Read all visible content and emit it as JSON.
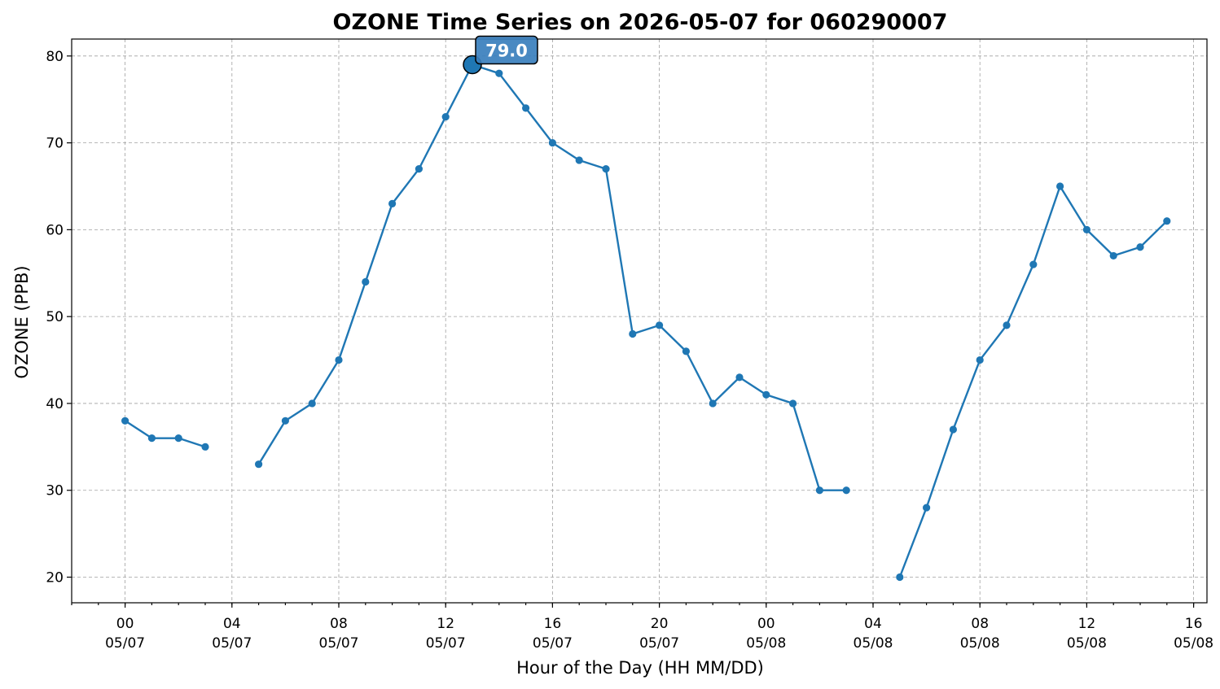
{
  "chart_data": {
    "type": "line",
    "title": "OZONE Time Series on 2026-05-07 for 060290007",
    "xlabel": "Hour of the Day (HH MM/DD)",
    "ylabel": "OZONE (PPB)",
    "ylim": [
      17.05,
      81.95
    ],
    "xlim": [
      "2026-05-06 22:00",
      "2026-05-08 16:30"
    ],
    "y_ticks": [
      20,
      30,
      40,
      50,
      60,
      70,
      80
    ],
    "x_ticks": [
      {
        "time": "2026-05-07 00:00",
        "hour": "00",
        "date": "05/07"
      },
      {
        "time": "2026-05-07 04:00",
        "hour": "04",
        "date": "05/07"
      },
      {
        "time": "2026-05-07 08:00",
        "hour": "08",
        "date": "05/07"
      },
      {
        "time": "2026-05-07 12:00",
        "hour": "12",
        "date": "05/07"
      },
      {
        "time": "2026-05-07 16:00",
        "hour": "16",
        "date": "05/07"
      },
      {
        "time": "2026-05-07 20:00",
        "hour": "20",
        "date": "05/07"
      },
      {
        "time": "2026-05-08 00:00",
        "hour": "00",
        "date": "05/08"
      },
      {
        "time": "2026-05-08 04:00",
        "hour": "04",
        "date": "05/08"
      },
      {
        "time": "2026-05-08 08:00",
        "hour": "08",
        "date": "05/08"
      },
      {
        "time": "2026-05-08 12:00",
        "hour": "12",
        "date": "05/08"
      },
      {
        "time": "2026-05-08 16:00",
        "hour": "16",
        "date": "05/08"
      }
    ],
    "x": [
      "2026-05-07 00:00",
      "2026-05-07 01:00",
      "2026-05-07 02:00",
      "2026-05-07 03:00",
      "2026-05-07 04:00",
      "2026-05-07 05:00",
      "2026-05-07 06:00",
      "2026-05-07 07:00",
      "2026-05-07 08:00",
      "2026-05-07 09:00",
      "2026-05-07 10:00",
      "2026-05-07 11:00",
      "2026-05-07 12:00",
      "2026-05-07 13:00",
      "2026-05-07 14:00",
      "2026-05-07 15:00",
      "2026-05-07 16:00",
      "2026-05-07 17:00",
      "2026-05-07 18:00",
      "2026-05-07 19:00",
      "2026-05-07 20:00",
      "2026-05-07 21:00",
      "2026-05-07 22:00",
      "2026-05-07 23:00",
      "2026-05-08 00:00",
      "2026-05-08 01:00",
      "2026-05-08 02:00",
      "2026-05-08 03:00",
      "2026-05-08 04:00",
      "2026-05-08 05:00",
      "2026-05-08 06:00",
      "2026-05-08 07:00",
      "2026-05-08 08:00",
      "2026-05-08 09:00",
      "2026-05-08 10:00",
      "2026-05-08 11:00",
      "2026-05-08 12:00",
      "2026-05-08 13:00",
      "2026-05-08 14:00",
      "2026-05-08 15:00"
    ],
    "series": [
      {
        "values": [
          38,
          36,
          36,
          35,
          null,
          33,
          38,
          40,
          45,
          54,
          63,
          67,
          73,
          79,
          78,
          74,
          70,
          68,
          67,
          48,
          49,
          46,
          40,
          43,
          41,
          40,
          30,
          30,
          null,
          20,
          28,
          37,
          45,
          49,
          56,
          65,
          60,
          57,
          58,
          61
        ]
      }
    ],
    "peak_annotation": {
      "time": "2026-05-07 13:00",
      "value": 79.0,
      "label": "79.0"
    },
    "grid": true,
    "colors": {
      "series": "#1f77b4",
      "annotation_box": "#3a7fbd"
    }
  }
}
